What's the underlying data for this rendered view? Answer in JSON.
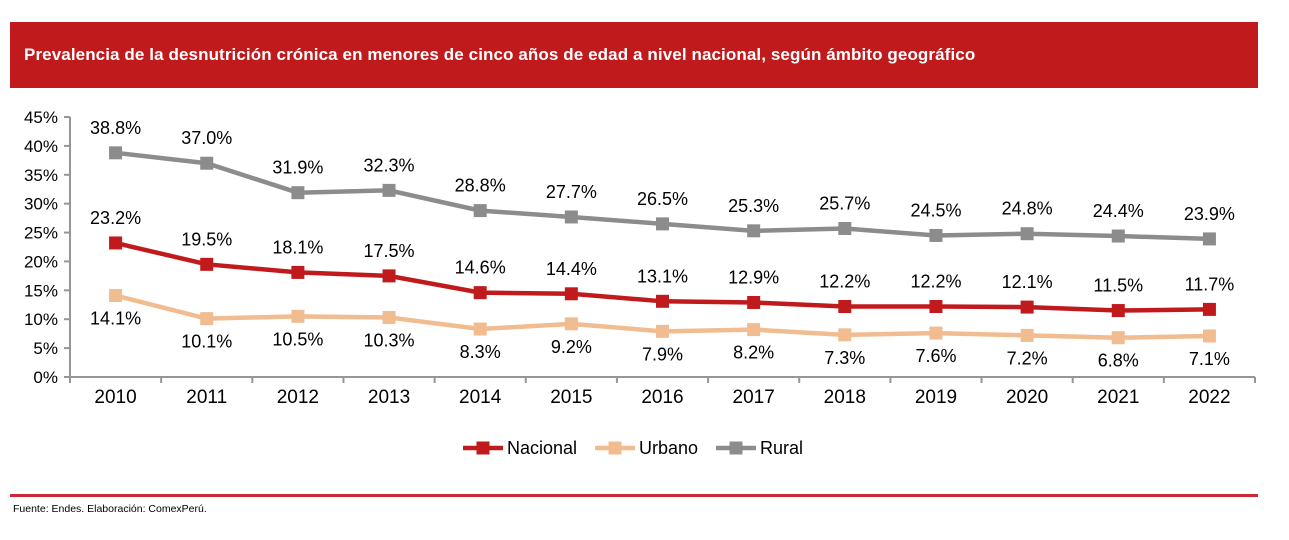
{
  "header": {
    "title": "Prevalencia de la desnutrición crónica en menores de cinco años de edad a nivel nacional, según ámbito geográfico"
  },
  "chart_data": {
    "type": "line",
    "categories": [
      "2010",
      "2011",
      "2012",
      "2013",
      "2014",
      "2015",
      "2016",
      "2017",
      "2018",
      "2019",
      "2020",
      "2021",
      "2022"
    ],
    "series": [
      {
        "name": "Nacional",
        "color": "#C01A1D",
        "label_position": "above",
        "values": [
          23.2,
          19.5,
          18.1,
          17.5,
          14.6,
          14.4,
          13.1,
          12.9,
          12.2,
          12.2,
          12.1,
          11.5,
          11.7
        ]
      },
      {
        "name": "Urbano",
        "color": "#F0BC90",
        "label_position": "below",
        "values": [
          14.1,
          10.1,
          10.5,
          10.3,
          8.3,
          9.2,
          7.9,
          8.2,
          7.3,
          7.6,
          7.2,
          6.8,
          7.1
        ]
      },
      {
        "name": "Rural",
        "color": "#8C8C8C",
        "label_position": "above",
        "values": [
          38.8,
          37.0,
          31.9,
          32.3,
          28.8,
          27.7,
          26.5,
          25.3,
          25.7,
          24.5,
          24.8,
          24.4,
          23.9
        ]
      }
    ],
    "y_axis": {
      "min": 0,
      "max": 45,
      "step": 5,
      "tick_suffix": "%"
    },
    "x_axis_label": "",
    "ylabel": "",
    "title": "",
    "grid": false,
    "legend_position": "bottom",
    "legend": [
      "Nacional",
      "Urbano",
      "Rural"
    ]
  },
  "footer": {
    "source": "Fuente: Endes. Elaboración: ComexPerú."
  },
  "colors": {
    "banner": "#C01A1D",
    "divider": "#CC2936",
    "axis": "#969696",
    "text": "#000000"
  }
}
